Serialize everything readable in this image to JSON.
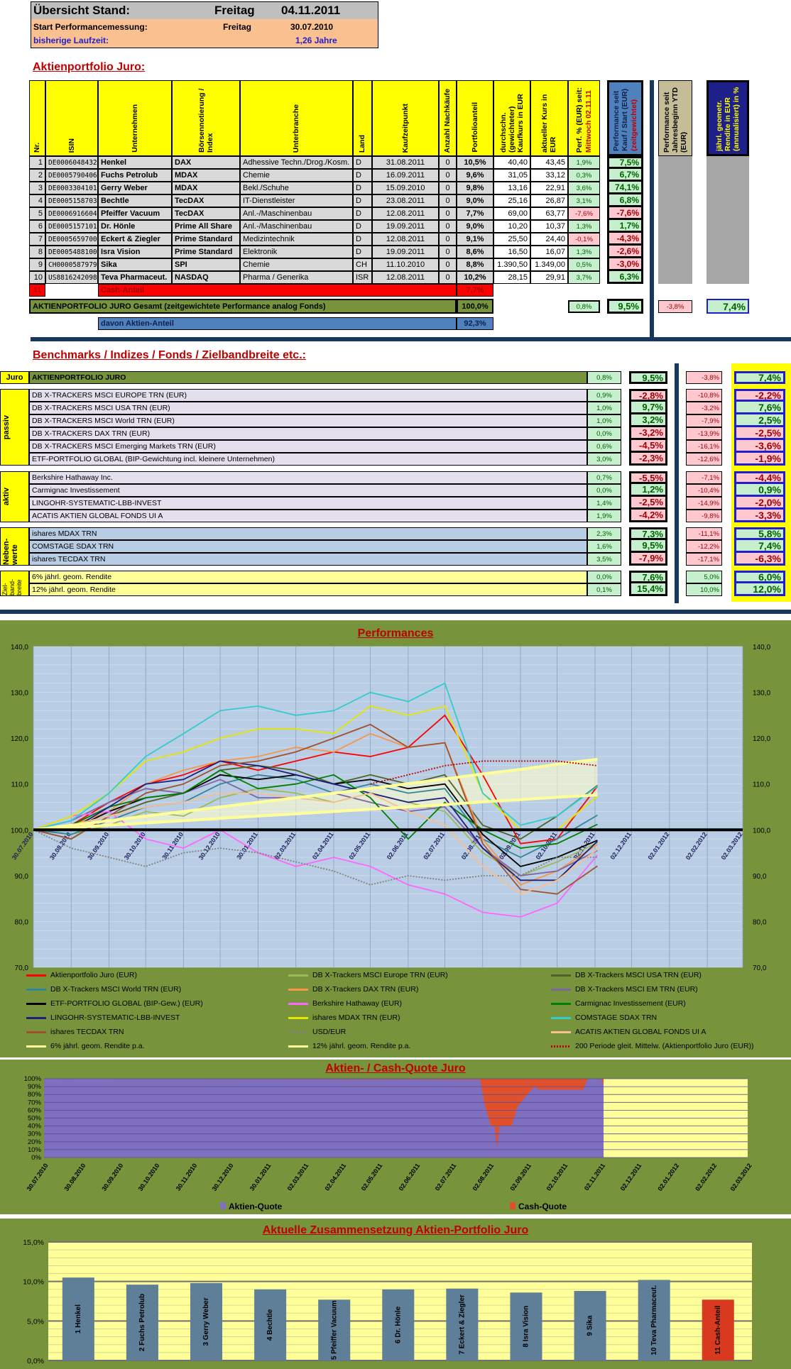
{
  "overview": {
    "title": "Übersicht Stand:",
    "day": "Freitag",
    "date": "04.11.2011",
    "start_label": "Start Performancemessung:",
    "start_day": "Freitag",
    "start_date": "30.07.2010",
    "runtime_label": "bisherige Laufzeit:",
    "runtime": "1,26 Jahre"
  },
  "portfolio": {
    "title": "Aktienportfolio Juro:",
    "columns": {
      "nr": "Nr.",
      "isin": "ISIN",
      "name": "Unternehmen",
      "index": "Börsennotierung / Index",
      "sector": "Unterbranche",
      "country": "Land",
      "buy_date": "Kaufzeitpunkt",
      "rebuys": "Anzahl Nachkäufe",
      "share": "Portfolioanteil",
      "avg_price": "durchschn. (gewichteter) Kaufkurs in EUR",
      "price": "aktueller Kurs in EUR",
      "perf_day": "Perf. % (EUR) seit:",
      "perf_day_ref": "Mittwoch 02.11.11",
      "perf_total": "Performance seit Kauf / Start (EUR)",
      "perf_total_note": "(zeitgewichtet)",
      "ytd": "Performance seit Jahresbeginn YTD (EUR)",
      "annual": "jährl. geometr. Rendite in EUR (annualisiert) in %"
    },
    "rows": [
      {
        "nr": "1",
        "isin": "DE0006048432",
        "name": "Henkel",
        "index": "DAX",
        "sector": "Adhessive Techn./Drog./Kosm.",
        "country": "D",
        "buy_date": "31.08.2011",
        "rebuys": "0",
        "share": "10,5%",
        "avg_price": "40,40",
        "price": "43,45",
        "perf_day": "1,9%",
        "perf_total": "7,5%"
      },
      {
        "nr": "2",
        "isin": "DE0005790406",
        "name": "Fuchs Petrolub",
        "index": "MDAX",
        "sector": "Chemie",
        "country": "D",
        "buy_date": "16.09.2011",
        "rebuys": "0",
        "share": "9,6%",
        "avg_price": "31,05",
        "price": "33,12",
        "perf_day": "0,3%",
        "perf_total": "6,7%"
      },
      {
        "nr": "3",
        "isin": "DE0003304101",
        "name": "Gerry Weber",
        "index": "MDAX",
        "sector": "Bekl./Schuhe",
        "country": "D",
        "buy_date": "15.09.2010",
        "rebuys": "0",
        "share": "9,8%",
        "avg_price": "13,16",
        "price": "22,91",
        "perf_day": "3,6%",
        "perf_total": "74,1%"
      },
      {
        "nr": "4",
        "isin": "DE0005158703",
        "name": "Bechtle",
        "index": "TecDAX",
        "sector": "IT-Dienstleister",
        "country": "D",
        "buy_date": "23.08.2011",
        "rebuys": "0",
        "share": "9,0%",
        "avg_price": "25,16",
        "price": "26,87",
        "perf_day": "3,1%",
        "perf_total": "6,8%"
      },
      {
        "nr": "5",
        "isin": "DE0006916604",
        "name": "Pfeiffer Vacuum",
        "index": "TecDAX",
        "sector": "Anl.-/Maschinenbau",
        "country": "D",
        "buy_date": "12.08.2011",
        "rebuys": "0",
        "share": "7,7%",
        "avg_price": "69,00",
        "price": "63,77",
        "perf_day": "-7,6%",
        "perf_total": "-7,6%"
      },
      {
        "nr": "6",
        "isin": "DE0005157101",
        "name": "Dr. Hönle",
        "index": "Prime All Share",
        "sector": "Anl.-/Maschinenbau",
        "country": "D",
        "buy_date": "19.09.2011",
        "rebuys": "0",
        "share": "9,0%",
        "avg_price": "10,20",
        "price": "10,37",
        "perf_day": "1,3%",
        "perf_total": "1,7%"
      },
      {
        "nr": "7",
        "isin": "DE0005659700",
        "name": "Eckert & Ziegler",
        "index": "Prime Standard",
        "sector": "Medizintechnik",
        "country": "D",
        "buy_date": "12.08.2011",
        "rebuys": "0",
        "share": "9,1%",
        "avg_price": "25,50",
        "price": "24,40",
        "perf_day": "-0,1%",
        "perf_total": "-4,3%"
      },
      {
        "nr": "8",
        "isin": "DE0005488100",
        "name": "Isra Vision",
        "index": "Prime Standard",
        "sector": "Elektronik",
        "country": "D",
        "buy_date": "19.09.2011",
        "rebuys": "0",
        "share": "8,6%",
        "avg_price": "16,50",
        "price": "16,07",
        "perf_day": "1,3%",
        "perf_total": "-2,6%"
      },
      {
        "nr": "9",
        "isin": "CH0000587979",
        "name": "Sika",
        "index": "SPI",
        "sector": "Chemie",
        "country": "CH",
        "buy_date": "11.10.2010",
        "rebuys": "0",
        "share": "8,8%",
        "avg_price": "1.390,50",
        "price": "1.349,00",
        "perf_day": "0,5%",
        "perf_total": "-3,0%"
      },
      {
        "nr": "10",
        "isin": "US8816242098",
        "name": "Teva Pharmaceut.",
        "index": "NASDAQ",
        "sector": "Pharma / Generika",
        "country": "ISR",
        "buy_date": "12.08.2011",
        "rebuys": "0",
        "share": "10,2%",
        "avg_price": "28,15",
        "price": "29,91",
        "perf_day": "3,7%",
        "perf_total": "6,3%"
      }
    ],
    "cash": {
      "nr": "11",
      "label": "Cash-Anteil",
      "share": "7,7%"
    },
    "total": {
      "label": "AKTIENPORTFOLIO JURO Gesamt (zeitgewichtete Performance analog Fonds)",
      "share": "100,0%",
      "perf_day": "0,8%",
      "perf_total": "9,5%",
      "ytd": "-3,8%",
      "annual": "7,4%"
    },
    "equity": {
      "label": "davon Aktien-Anteil",
      "share": "92,3%"
    }
  },
  "benchmarks": {
    "title": "Benchmarks / Indizes / Fonds / Zielbandbreite etc.:",
    "groups": [
      {
        "label": "Juro",
        "rows": [
          {
            "name": "AKTIENPORTFOLIO JURO",
            "perf_day": "0,8%",
            "perf_total": "9,5%",
            "ytd": "-3,8%",
            "annual": "7,4%"
          }
        ]
      },
      {
        "label": "passiv",
        "rows": [
          {
            "name": "DB X-TRACKERS MSCI EUROPE TRN (EUR)",
            "perf_day": "0,9%",
            "perf_total": "-2,8%",
            "ytd": "-10,8%",
            "annual": "-2,2%"
          },
          {
            "name": "DB X-TRACKERS MSCI USA TRN (EUR)",
            "perf_day": "1,0%",
            "perf_total": "9,7%",
            "ytd": "-3,2%",
            "annual": "7,6%"
          },
          {
            "name": "DB X-TRACKERS MSCI World TRN (EUR)",
            "perf_day": "1,0%",
            "perf_total": "3,2%",
            "ytd": "-7,9%",
            "annual": "2,5%"
          },
          {
            "name": "DB X-TRACKERS DAX TRN (EUR)",
            "perf_day": "0,0%",
            "perf_total": "-3,2%",
            "ytd": "-13,9%",
            "annual": "-2,5%"
          },
          {
            "name": "DB X-TRACKERS MSCI Emerging Markets TRN (EUR)",
            "perf_day": "0,6%",
            "perf_total": "-4,5%",
            "ytd": "-16,1%",
            "annual": "-3,6%"
          },
          {
            "name": "ETF-PORTFOLIO GLOBAL (BIP-Gewichtung incl. kleinere Unternehmen)",
            "perf_day": "3,0%",
            "perf_total": "-2,3%",
            "ytd": "-12,6%",
            "annual": "-1,9%"
          }
        ]
      },
      {
        "label": "aktiv",
        "rows": [
          {
            "name": "Berkshire Hathaway Inc.",
            "perf_day": "0,7%",
            "perf_total": "-5,5%",
            "ytd": "-7,1%",
            "annual": "-4,4%"
          },
          {
            "name": "Carmignac Investissement",
            "perf_day": "0,0%",
            "perf_total": "1,2%",
            "ytd": "-10,4%",
            "annual": "0,9%"
          },
          {
            "name": "LINGOHR-SYSTEMATIC-LBB-INVEST",
            "perf_day": "1,4%",
            "perf_total": "-2,5%",
            "ytd": "-14,9%",
            "annual": "-2,0%"
          },
          {
            "name": "ACATIS AKTIEN GLOBAL FONDS UI A",
            "perf_day": "1,9%",
            "perf_total": "-4,2%",
            "ytd": "-9,8%",
            "annual": "-3,3%"
          }
        ]
      },
      {
        "label": "Neben-werte",
        "rows": [
          {
            "name": "ishares MDAX TRN",
            "perf_day": "2,3%",
            "perf_total": "7,3%",
            "ytd": "-11,1%",
            "annual": "5,8%"
          },
          {
            "name": "COMSTAGE SDAX TRN",
            "perf_day": "1,6%",
            "perf_total": "9,5%",
            "ytd": "-12,2%",
            "annual": "7,4%"
          },
          {
            "name": "ishares TECDAX TRN",
            "perf_day": "3,5%",
            "perf_total": "-7,9%",
            "ytd": "-17,1%",
            "annual": "-6,3%"
          }
        ]
      },
      {
        "label": "Ziel-band-breite",
        "rows": [
          {
            "name": "6% jährl. geom. Rendite",
            "perf_day": "0,0%",
            "perf_total": "7,6%",
            "ytd": "5,0%",
            "annual": "6,0%"
          },
          {
            "name": "12% jährl. geom. Rendite",
            "perf_day": "0,1%",
            "perf_total": "15,4%",
            "ytd": "10,0%",
            "annual": "12,0%"
          }
        ]
      }
    ]
  },
  "chart_data": [
    {
      "type": "line",
      "title": "Performances",
      "ylim": [
        70,
        140
      ],
      "yticks": [
        "70,0",
        "80,0",
        "90,0",
        "100,0",
        "110,0",
        "120,0",
        "130,0",
        "140,0"
      ],
      "xticks": [
        "30.07.2010",
        "30.08.2010",
        "30.09.2010",
        "30.10.2010",
        "30.11.2010",
        "30.12.2010",
        "30.01.2011",
        "02.03.2011",
        "02.04.2011",
        "02.05.2011",
        "02.06.2011",
        "02.07.2011",
        "02.08.2011",
        "02.09.2011",
        "02.10.2011",
        "02.11.2011",
        "02.12.2011",
        "02.01.2012",
        "02.02.2012",
        "02.03.2012"
      ],
      "x": [
        "30.07.2010",
        "30.08.2010",
        "30.09.2010",
        "30.10.2010",
        "30.11.2010",
        "30.12.2010",
        "30.01.2011",
        "02.03.2011",
        "02.04.2011",
        "02.05.2011",
        "02.06.2011",
        "02.07.2011",
        "02.08.2011",
        "02.09.2011",
        "02.10.2011",
        "04.11.2011"
      ],
      "grid": true,
      "legend": "bottom",
      "series": [
        {
          "name": "Aktienportfolio Juro (EUR)",
          "color": "#ff0000",
          "values": [
            100,
            101,
            106,
            110,
            112,
            115,
            113,
            115,
            117,
            116,
            118,
            125,
            112,
            97,
            98,
            109.5
          ]
        },
        {
          "name": "DB X-Trackers MSCI Europe TRN (EUR)",
          "color": "#9bbb59",
          "values": [
            100,
            99,
            101,
            104,
            103,
            107,
            109,
            108,
            106,
            108,
            106,
            104,
            95,
            90,
            93,
            97.2
          ]
        },
        {
          "name": "DB X-Trackers MSCI USA TRN (EUR)",
          "color": "#4f6228",
          "values": [
            100,
            98,
            103,
            106,
            108,
            113,
            114,
            113,
            110,
            112,
            110,
            112,
            101,
            98,
            103,
            109.7
          ]
        },
        {
          "name": "DB X-Trackers MSCI World TRN (EUR)",
          "color": "#31849b",
          "values": [
            100,
            99,
            102,
            105,
            106,
            110,
            112,
            111,
            108,
            110,
            108,
            109,
            98,
            94,
            98,
            103.2
          ]
        },
        {
          "name": "DB X-Trackers DAX TRN (EUR)",
          "color": "#f79646",
          "values": [
            100,
            101,
            104,
            110,
            113,
            115,
            116,
            118,
            117,
            121,
            118,
            119,
            98,
            88,
            91,
            96.8
          ]
        },
        {
          "name": "DB X-Trackers  MSCI EM TRN (EUR)",
          "color": "#8064a2",
          "values": [
            100,
            102,
            106,
            109,
            108,
            111,
            107,
            107,
            108,
            106,
            104,
            105,
            96,
            90,
            91,
            95.5
          ]
        },
        {
          "name": "ETF-PORTFOLIO GLOBAL (BIP-Gew.) (EUR)",
          "color": "#000000",
          "values": [
            100,
            100,
            104,
            107,
            108,
            112,
            111,
            112,
            110,
            111,
            109,
            110,
            99,
            92,
            94,
            97.7
          ]
        },
        {
          "name": "Berkshire Hathaway (EUR)",
          "color": "#ff66ff",
          "values": [
            100,
            103,
            104,
            98,
            96,
            100,
            95,
            92,
            94,
            92,
            88,
            86,
            82,
            81,
            84,
            94.5
          ]
        },
        {
          "name": "Carmignac Investissement (EUR)",
          "color": "#008000",
          "values": [
            100,
            101,
            105,
            107,
            108,
            113,
            109,
            110,
            112,
            107,
            98,
            106,
            100,
            96,
            97,
            101.2
          ]
        },
        {
          "name": "LINGOHR-SYSTEMATIC-LBB-INVEST",
          "color": "#1f1f7a",
          "values": [
            100,
            100,
            105,
            110,
            111,
            115,
            114,
            112,
            110,
            108,
            106,
            107,
            96,
            89,
            89,
            97.5
          ]
        },
        {
          "name": "ishares MDAX TRN (EUR)",
          "color": "#e6e600",
          "values": [
            100,
            103,
            108,
            115,
            117,
            120,
            122,
            122,
            121,
            127,
            125,
            127,
            108,
            100,
            100,
            107.3
          ]
        },
        {
          "name": "COMSTAGE SDAX TRN",
          "color": "#33cccc",
          "values": [
            100,
            102,
            108,
            116,
            121,
            126,
            127,
            125,
            126,
            130,
            128,
            132,
            108,
            101,
            103,
            109.5
          ]
        },
        {
          "name": "ishares TECDAX TRN",
          "color": "#a0522d",
          "values": [
            100,
            98,
            103,
            108,
            110,
            114,
            115,
            117,
            120,
            123,
            118,
            119,
            97,
            87,
            86,
            92.1
          ]
        },
        {
          "name": "USD/EUR",
          "color": "#808080",
          "dash": true,
          "values": [
            100,
            96,
            94,
            92,
            95,
            96,
            95,
            93,
            91,
            88,
            90,
            89,
            90,
            90,
            94,
            94
          ]
        },
        {
          "name": "ACATIS AKTIEN GLOBAL FONDS UI A",
          "color": "#fabf8f",
          "values": [
            100,
            101,
            103,
            105,
            106,
            108,
            108,
            107,
            106,
            108,
            104,
            101,
            92,
            86,
            89,
            95.8
          ]
        },
        {
          "name": "6% jährl. geom. Rendite p.a.",
          "color": "#ffff99",
          "values": [
            100,
            100.5,
            101,
            101.5,
            102,
            102.5,
            103,
            103.5,
            104,
            104.5,
            105,
            105.5,
            106.1,
            106.6,
            107.1,
            107.6
          ]
        },
        {
          "name": "12% jährl. geom. Rendite p.a.",
          "color": "#ffff99",
          "values": [
            100,
            101,
            102,
            103,
            104,
            105,
            106,
            107,
            108,
            109,
            110.1,
            111.1,
            112.2,
            113.2,
            114.3,
            115.4
          ]
        },
        {
          "name": "200 Periode gleit. Mittelw. (Aktienportfolio  Juro (EUR))",
          "color": "#c00000",
          "dash": true,
          "values": [
            null,
            null,
            null,
            null,
            null,
            null,
            null,
            null,
            null,
            110,
            112,
            114,
            115,
            115,
            115,
            114
          ]
        }
      ]
    },
    {
      "type": "area",
      "title": "Aktien- / Cash-Quote Juro",
      "ylim": [
        0,
        100
      ],
      "yticks": [
        "0%",
        "10%",
        "20%",
        "30%",
        "40%",
        "50%",
        "60%",
        "70%",
        "80%",
        "90%",
        "100%"
      ],
      "x": [
        "30.07.2010",
        "25.07.2011",
        "29.07.2011",
        "03.08.2011",
        "06.08.2011",
        "08.08.2011",
        "10.08.2011",
        "20.08.2011",
        "25.08.2011",
        "02.09.2011",
        "08.09.2011",
        "12.09.2011",
        "02.10.2011",
        "18.10.2011",
        "22.10.2011",
        "02.11.2011",
        "04.11.2011"
      ],
      "series": [
        {
          "name": "Aktien-Quote",
          "color": "#7f6fbf",
          "values": [
            100,
            99,
            66,
            40,
            40,
            12,
            40,
            40,
            65,
            80,
            90,
            86,
            86,
            86,
            100,
            100,
            92
          ]
        },
        {
          "name": "Cash-Quote",
          "color": "#e0502a",
          "values": [
            0,
            1,
            34,
            60,
            60,
            88,
            60,
            60,
            35,
            20,
            10,
            14,
            14,
            14,
            0,
            0,
            8
          ]
        }
      ]
    },
    {
      "type": "bar",
      "title": "Aktuelle Zusammensetzung Aktien-Portfolio Juro",
      "ylim": [
        0,
        15
      ],
      "yticks": [
        "0,0%",
        "5,0%",
        "10,0%",
        "15,0%"
      ],
      "categories": [
        "1 Henkel",
        "2 Fuchs Petrolub",
        "3 Gerry Weber",
        "4 Bechtle",
        "5 Pfeiffer Vacuum",
        "6 Dr. Hönle",
        "7 Eckert & Ziegler",
        "8 Isra Vision",
        "9 Sika",
        "10 Teva Pharmaceut.",
        "11 Cash-Anteil"
      ],
      "values": [
        10.5,
        9.6,
        9.8,
        9.0,
        7.7,
        9.0,
        9.1,
        8.6,
        8.8,
        10.2,
        7.7
      ],
      "colors": {
        "stock": "#5f7f99",
        "cash": "#d93a1f"
      }
    }
  ]
}
